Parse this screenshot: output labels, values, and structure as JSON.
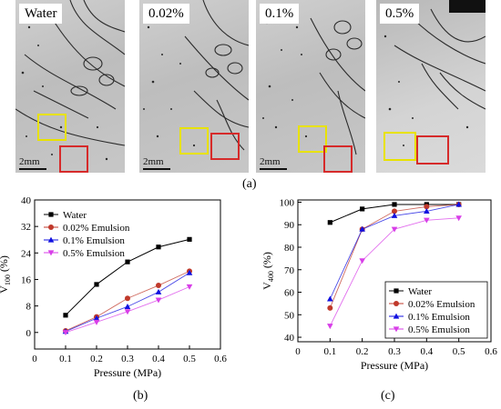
{
  "figure": {
    "panel_a": {
      "caption": "(a)",
      "scale_bar": "2mm",
      "images": [
        {
          "label": "Water"
        },
        {
          "label": "0.02%"
        },
        {
          "label": "0.1%"
        },
        {
          "label": "0.5%"
        }
      ]
    },
    "panel_b": {
      "caption": "(b)"
    },
    "panel_c": {
      "caption": "(c)"
    }
  },
  "colors": {
    "water": "#000000",
    "e002": "#c0392b",
    "e01": "#1010e0",
    "e05": "#d83ee8",
    "yellow_box": "#e8e200",
    "red_box": "#d62a2a"
  },
  "chart_data": [
    {
      "type": "line",
      "xlabel": "Pressure (MPa)",
      "ylabel_main": "V",
      "ylabel_sub": "100",
      "ylabel_unit": " (%)",
      "xlim": [
        0,
        0.6
      ],
      "ylim": [
        -5,
        40
      ],
      "xticks": [
        0,
        0.1,
        0.2,
        0.3,
        0.4,
        0.5,
        0.6
      ],
      "yticks": [
        0,
        8,
        16,
        24,
        32,
        40
      ],
      "legend_position": "top-left",
      "series": [
        {
          "name": "Water",
          "x": [
            0.1,
            0.2,
            0.3,
            0.4,
            0.5
          ],
          "y": [
            5.2,
            14.5,
            21.3,
            25.8,
            28.1
          ]
        },
        {
          "name": "0.02% Emulsion",
          "x": [
            0.1,
            0.2,
            0.3,
            0.4,
            0.5
          ],
          "y": [
            0.5,
            4.7,
            10.3,
            14.2,
            18.5
          ]
        },
        {
          "name": "0.1% Emulsion",
          "x": [
            0.1,
            0.2,
            0.3,
            0.4,
            0.5
          ],
          "y": [
            0.3,
            4.3,
            7.8,
            12.2,
            18.0
          ]
        },
        {
          "name": "0.5% Emulsion",
          "x": [
            0.1,
            0.2,
            0.3,
            0.4,
            0.5
          ],
          "y": [
            0.0,
            3.1,
            6.3,
            9.8,
            13.8
          ]
        }
      ]
    },
    {
      "type": "line",
      "xlabel": "Pressure (MPa)",
      "ylabel_main": "V",
      "ylabel_sub": "400",
      "ylabel_unit": " (%)",
      "xlim": [
        0,
        0.6
      ],
      "ylim": [
        38,
        101
      ],
      "xticks": [
        0,
        0.1,
        0.2,
        0.3,
        0.4,
        0.5,
        0.6
      ],
      "yticks": [
        40,
        50,
        60,
        70,
        80,
        90,
        100
      ],
      "legend_position": "bottom-right",
      "series": [
        {
          "name": "Water",
          "x": [
            0.1,
            0.2,
            0.3,
            0.4,
            0.5
          ],
          "y": [
            91,
            97,
            99,
            99,
            99
          ]
        },
        {
          "name": "0.02% Emulsion",
          "x": [
            0.1,
            0.2,
            0.3,
            0.4,
            0.5
          ],
          "y": [
            53,
            88,
            96,
            98,
            99
          ]
        },
        {
          "name": "0.1% Emulsion",
          "x": [
            0.1,
            0.2,
            0.3,
            0.4,
            0.5
          ],
          "y": [
            57,
            88,
            94,
            96,
            99
          ]
        },
        {
          "name": "0.5% Emulsion",
          "x": [
            0.1,
            0.2,
            0.3,
            0.4,
            0.5
          ],
          "y": [
            45,
            74,
            88,
            92,
            93
          ]
        }
      ]
    }
  ]
}
